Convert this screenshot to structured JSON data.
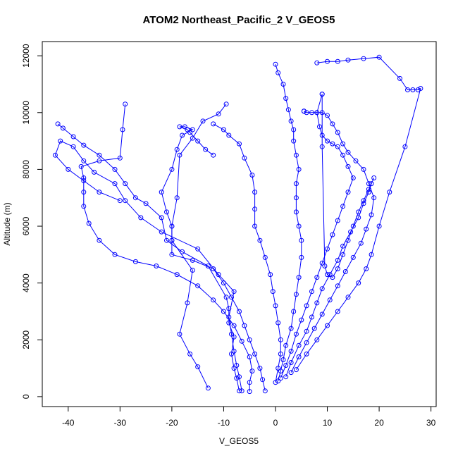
{
  "chart_data": {
    "type": "scatter",
    "title": "ATOM2 Northeast_Pacific_2 V_GEOS5",
    "xlabel": "V_GEOS5",
    "ylabel": "Altitude (m)",
    "xlim": [
      -45,
      31
    ],
    "ylim": [
      -350,
      12500
    ],
    "x_ticks": [
      -40,
      -30,
      -20,
      -10,
      0,
      10,
      20,
      30
    ],
    "y_ticks": [
      0,
      2000,
      4000,
      6000,
      8000,
      10000,
      12000
    ],
    "x_tick_labels": [
      "-40",
      "-30",
      "-20",
      "-10",
      "0",
      "10",
      "20",
      "30"
    ],
    "y_tick_labels": [
      "0",
      "2000",
      "4000",
      "6000",
      "8000",
      "10000",
      "12000"
    ],
    "grid": false,
    "legend": "none",
    "mode": "lines+markers",
    "color": "#0000ff",
    "series": [
      {
        "x": [
          -13,
          -15,
          -16.5,
          -18.5,
          -17,
          -16,
          -20,
          -20,
          -19,
          -18.5,
          -16,
          -14,
          -11,
          -9.5
        ],
        "y": [
          300,
          1050,
          1500,
          2200,
          3300,
          4450,
          5500,
          6000,
          7000,
          8500,
          9100,
          9700,
          9950,
          10300
        ]
      },
      {
        "x": [
          -7,
          -7.5,
          -8,
          -8.5,
          -8,
          -9,
          -9,
          -9.5,
          -13,
          -18,
          -21,
          -22,
          -25,
          -27,
          -29,
          -31,
          -34,
          -37,
          -39,
          -41,
          -42
        ],
        "y": [
          200,
          650,
          1000,
          1500,
          2100,
          2600,
          3100,
          3500,
          4600,
          5100,
          5500,
          6300,
          6800,
          7000,
          7500,
          8000,
          8500,
          8850,
          9150,
          9450,
          9600
        ]
      },
      {
        "x": [
          -6.5,
          -7,
          -7.5,
          -8,
          -8.5,
          -9,
          -8,
          -11,
          -15,
          -22,
          -26,
          -29,
          -31,
          -35,
          -37,
          -39,
          -41.5,
          -42.5,
          -40,
          -37,
          -34,
          -30
        ],
        "y": [
          200,
          700,
          1100,
          1600,
          2200,
          2800,
          3700,
          4300,
          5200,
          5800,
          6300,
          6900,
          7500,
          7900,
          8300,
          8800,
          9000,
          8500,
          8000,
          7600,
          7200,
          6900
        ]
      },
      {
        "x": [
          -5,
          -5,
          -4.5,
          -5,
          -6.5,
          -8,
          -10,
          -12,
          -15,
          -19,
          -23,
          -27,
          -31,
          -34,
          -36,
          -37,
          -37,
          -37,
          -37.5,
          -34,
          -30,
          -29.5,
          -29
        ],
        "y": [
          180,
          500,
          900,
          1400,
          1950,
          2500,
          3000,
          3400,
          3900,
          4300,
          4600,
          4750,
          5000,
          5500,
          6100,
          6700,
          7200,
          7700,
          8100,
          8300,
          8400,
          9400,
          10300
        ]
      },
      {
        "x": [
          -2,
          -2.5,
          -3,
          -4,
          -5,
          -6,
          -7,
          -8.5,
          -10,
          -12,
          -16,
          -20,
          -20,
          -20,
          -21,
          -22,
          -20,
          -19,
          -18,
          -16,
          -17.5,
          -18.5,
          -17,
          -16.5,
          -15,
          -13.5,
          -12
        ],
        "y": [
          200,
          600,
          1000,
          1500,
          2000,
          2500,
          3000,
          3500,
          4000,
          4500,
          4800,
          5000,
          5500,
          6000,
          6500,
          7200,
          8000,
          8700,
          9200,
          9400,
          9500,
          9500,
          9400,
          9300,
          9000,
          8700,
          8500
        ]
      },
      {
        "x": [
          0,
          0.5,
          1,
          1,
          0.5,
          0,
          -0.5,
          -1,
          -2,
          -3,
          -4,
          -4,
          -4,
          -4.5,
          -6,
          -7,
          -9,
          -10,
          -12
        ],
        "y": [
          500,
          1000,
          1500,
          2000,
          2600,
          3200,
          3700,
          4300,
          4900,
          5500,
          6000,
          6600,
          7200,
          7800,
          8400,
          8900,
          9200,
          9400,
          9600
        ]
      },
      {
        "x": [
          0.5,
          1,
          1.5,
          2,
          3,
          3.5,
          4,
          4.5,
          5,
          5,
          4.5,
          4,
          4,
          4,
          4.5,
          4,
          3.5,
          3.5,
          3,
          2.5,
          2,
          1.5,
          0.5,
          0
        ],
        "y": [
          550,
          900,
          1300,
          1800,
          2400,
          3000,
          3600,
          4200,
          4900,
          5500,
          6000,
          6500,
          7000,
          7500,
          8000,
          8500,
          9000,
          9400,
          9700,
          10100,
          10500,
          11000,
          11400,
          11700
        ]
      },
      {
        "x": [
          1,
          2,
          3,
          4,
          5,
          6,
          7,
          8,
          9,
          10,
          11,
          12,
          13,
          14,
          15,
          14,
          13,
          12,
          11,
          10,
          9,
          8.5,
          8,
          9
        ],
        "y": [
          650,
          1100,
          1600,
          2200,
          2700,
          3200,
          3700,
          4200,
          4700,
          5200,
          5700,
          6200,
          6700,
          7200,
          7700,
          8100,
          8500,
          8800,
          8900,
          9000,
          9200,
          9500,
          10000,
          10650
        ]
      },
      {
        "x": [
          2,
          3,
          4.5,
          6,
          7,
          8,
          9,
          10.5,
          12,
          13,
          14.5,
          16,
          17,
          18,
          18.5,
          19,
          18,
          17,
          16,
          15,
          14,
          13,
          12,
          11,
          10,
          9.5,
          9,
          9
        ],
        "y": [
          700,
          1200,
          1800,
          2300,
          2800,
          3300,
          3800,
          4300,
          4800,
          5300,
          5800,
          6300,
          6800,
          7200,
          7500,
          7700,
          7300,
          6900,
          6500,
          6000,
          5500,
          5000,
          4500,
          4200,
          4300,
          4600,
          8800,
          10650
        ]
      },
      {
        "x": [
          3,
          4.5,
          6,
          7.5,
          9,
          10.5,
          12,
          13.5,
          15,
          16.5,
          17.5,
          18.5,
          19,
          18,
          17,
          15.5,
          14,
          13,
          12,
          11,
          10,
          9,
          8,
          7,
          6,
          5.5,
          5.5,
          5.5
        ],
        "y": [
          850,
          1400,
          1900,
          2400,
          2900,
          3400,
          3900,
          4400,
          4900,
          5400,
          5900,
          6400,
          7000,
          7500,
          8000,
          8300,
          8600,
          8900,
          9300,
          9600,
          9900,
          10000,
          10000,
          10000,
          10000,
          10050,
          10050,
          10050
        ]
      },
      {
        "x": [
          4,
          6,
          8,
          10,
          12,
          14,
          16,
          17.5,
          18.5,
          20,
          22,
          25,
          28,
          27.5,
          26.5,
          25.5,
          24,
          20,
          17,
          14,
          12,
          10,
          8
        ],
        "y": [
          950,
          1500,
          2000,
          2500,
          3000,
          3500,
          4000,
          4500,
          5000,
          6000,
          7200,
          8800,
          10850,
          10800,
          10800,
          10800,
          11200,
          11950,
          11900,
          11850,
          11800,
          11800,
          11750
        ]
      }
    ]
  }
}
